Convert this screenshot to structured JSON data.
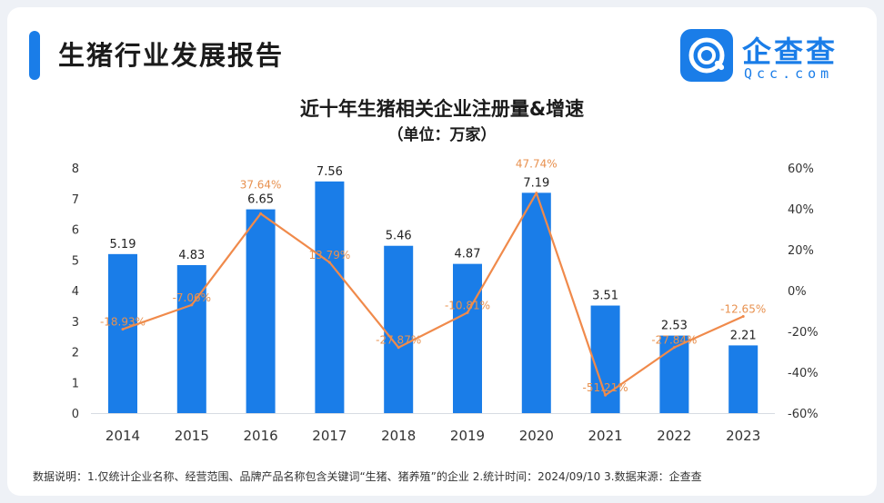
{
  "header": {
    "title": "生猪行业发展报告",
    "brand_name": "企查查",
    "brand_domain": "Qcc.com"
  },
  "colors": {
    "bar": "#1a7de8",
    "line": "#f08a4b",
    "growth_label": "#e8914f",
    "accent": "#1a7de8"
  },
  "icons": {
    "logo": "qcc-logo-icon"
  },
  "chart_data": {
    "type": "bar",
    "title": "近十年生猪相关企业注册量&增速",
    "subtitle": "（单位：万家）",
    "categories": [
      "2014",
      "2015",
      "2016",
      "2017",
      "2018",
      "2019",
      "2020",
      "2021",
      "2022",
      "2023"
    ],
    "series": [
      {
        "type": "bar",
        "axis": "left",
        "values": [
          5.19,
          4.83,
          6.65,
          7.56,
          5.46,
          4.87,
          7.19,
          3.51,
          2.53,
          2.21
        ],
        "labels": [
          "5.19",
          "4.83",
          "6.65",
          "7.56",
          "5.46",
          "4.87",
          "7.19",
          "3.51",
          "2.53",
          "2.21"
        ]
      },
      {
        "type": "line",
        "axis": "right",
        "values": [
          -18.93,
          -7.06,
          37.64,
          13.79,
          -27.87,
          -10.81,
          47.74,
          -51.21,
          -27.84,
          -12.65
        ],
        "labels": [
          "-18.93%",
          "-7.06%",
          "37.64%",
          "13.79%",
          "-27.87%",
          "-10.81%",
          "47.74%",
          "-51.21%",
          "-27.84%",
          "-12.65%"
        ]
      }
    ],
    "y_left": {
      "range": [
        0,
        8
      ],
      "ticks": [
        "0",
        "1",
        "2",
        "3",
        "4",
        "5",
        "6",
        "7",
        "8"
      ]
    },
    "y_right": {
      "range": [
        -60,
        60
      ],
      "ticks": [
        "-60%",
        "-40%",
        "-20%",
        "0%",
        "20%",
        "40%",
        "60%"
      ]
    },
    "grid": false,
    "legend": "none"
  },
  "footnote": "数据说明：1.仅统计企业名称、经营范围、品牌产品名称包含关键词“生猪、猪养殖”的企业  2.统计时间：2024/09/10   3.数据来源：企查查"
}
